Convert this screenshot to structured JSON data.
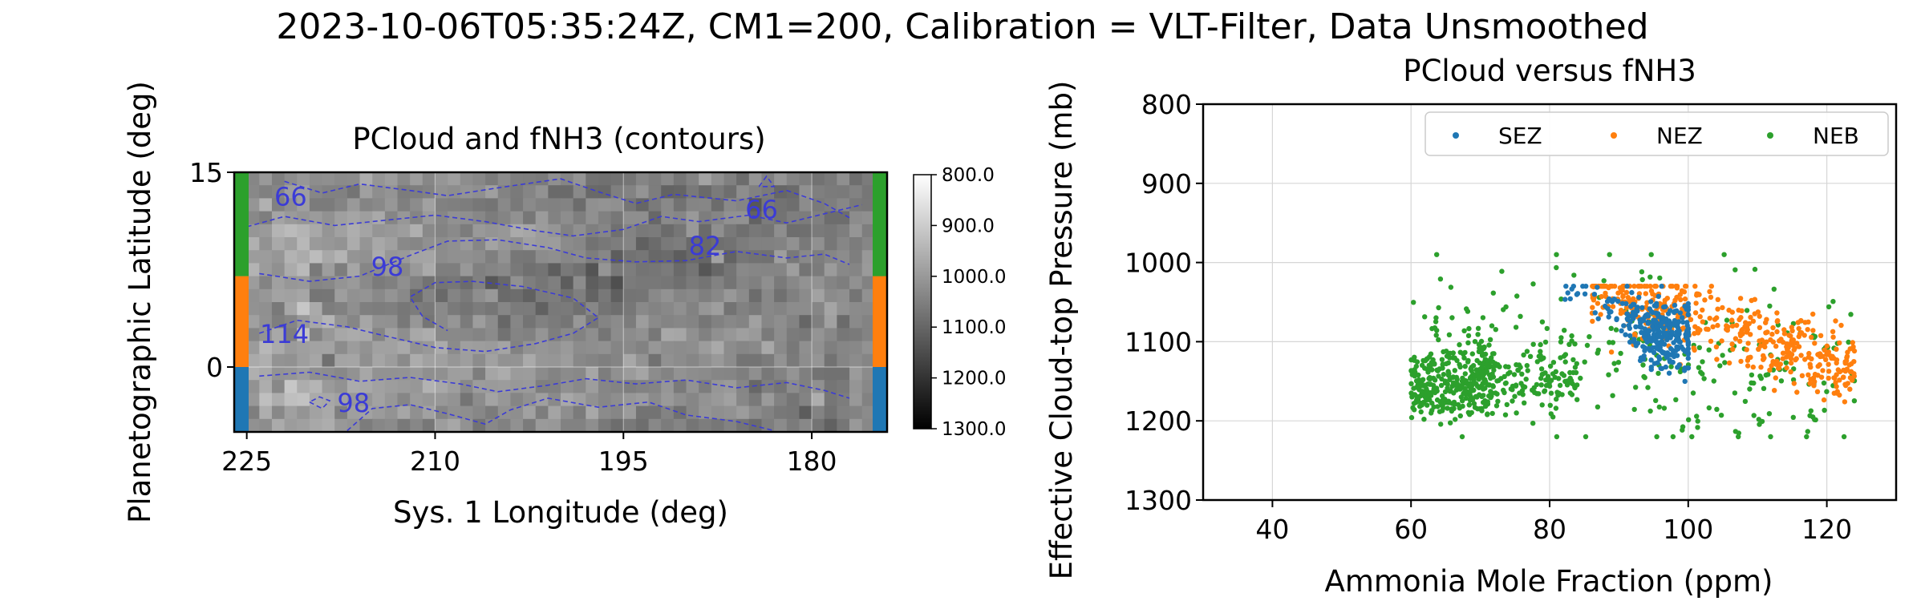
{
  "figure": {
    "suptitle": "2023-10-06T05:35:24Z, CM1=200, Calibration = VLT-Filter, Data Unsmoothed"
  },
  "chart_data": [
    {
      "type": "heatmap",
      "title": "PCloud and fNH3 (contours)",
      "xlabel": "Sys. 1 Longitude (deg)",
      "ylabel": "Planetographic Latitude (deg)",
      "xlim": [
        226,
        174
      ],
      "ylim": [
        -5,
        15
      ],
      "xticks": [
        "225",
        "210",
        "195",
        "180"
      ],
      "yticks": [
        "15",
        "0"
      ],
      "grid": true,
      "colorbar": {
        "range": [
          800,
          1300
        ],
        "colormap": "gray (800 = white, 1300 = black)",
        "tick_labels": [
          "800.0",
          "900.0",
          "1000.0",
          "1100.0",
          "1200.0",
          "1300.0"
        ]
      },
      "contour_labels": [
        "66",
        "66",
        "82",
        "98",
        "98",
        "114"
      ],
      "contour_color": "#3b3bd6",
      "band_colors": {
        "SEZ": "#1f77b4",
        "NEZ": "#ff7f0e",
        "NEB": "#2ca02c"
      },
      "band_latitudes": {
        "SEZ": [
          -5,
          0
        ],
        "NEZ": [
          0,
          7
        ],
        "NEB": [
          7,
          15
        ]
      }
    },
    {
      "type": "scatter",
      "title": "PCloud versus fNH3",
      "xlabel": "Ammonia Mole Fraction (ppm)",
      "ylabel": "Effective Cloud-top Pressure (mb)",
      "xlim": [
        30,
        130
      ],
      "ylim": [
        1300,
        800
      ],
      "xticks": [
        "40",
        "60",
        "80",
        "100",
        "120"
      ],
      "yticks": [
        "800",
        "900",
        "1000",
        "1100",
        "1200",
        "1300"
      ],
      "grid": true,
      "legend": {
        "placement": "top-right",
        "entries": [
          "SEZ",
          "NEZ",
          "NEB"
        ]
      },
      "series": [
        {
          "name": "SEZ",
          "color": "#1f77b4",
          "count": 300,
          "x_range": [
            80,
            100
          ],
          "y_range": [
            1030,
            1170
          ]
        },
        {
          "name": "NEZ",
          "color": "#ff7f0e",
          "count": 450,
          "x_range": [
            84,
            128
          ],
          "y_range": [
            1030,
            1230
          ]
        },
        {
          "name": "NEB",
          "color": "#2ca02c",
          "count": 700,
          "x_range": [
            57,
            125
          ],
          "y_range": [
            990,
            1220
          ]
        }
      ]
    }
  ]
}
